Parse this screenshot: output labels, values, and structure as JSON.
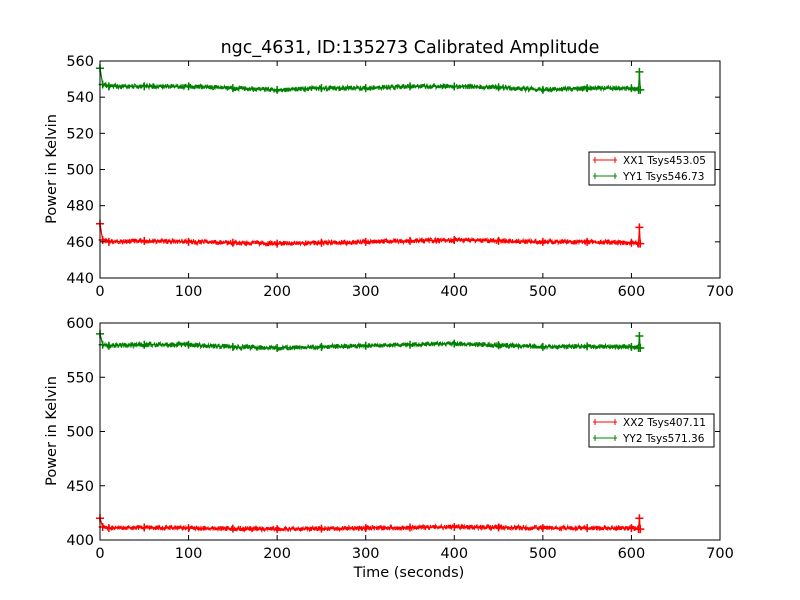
{
  "chart_data": [
    {
      "type": "line",
      "title": "ngc_4631, ID:135273 Calibrated Amplitude",
      "xlabel": "",
      "ylabel": "Power in Kelvin",
      "xlim": [
        0,
        700
      ],
      "ylim": [
        440,
        560
      ],
      "xticks": [
        0,
        100,
        200,
        300,
        400,
        500,
        600,
        700
      ],
      "yticks": [
        440,
        460,
        480,
        500,
        520,
        540,
        560
      ],
      "grid": false,
      "legend_position": "right",
      "series": [
        {
          "name": "XX1 Tsys453.05",
          "color": "#ff0000",
          "x": [
            0,
            3,
            10,
            50,
            100,
            150,
            200,
            250,
            300,
            350,
            400,
            450,
            500,
            550,
            600,
            608,
            609,
            610
          ],
          "y": [
            470,
            461,
            460,
            460.5,
            460,
            459.5,
            459,
            459.5,
            460,
            460.5,
            461,
            460.5,
            460,
            460,
            459.5,
            459,
            468,
            459
          ]
        },
        {
          "name": "YY1 Tsys546.73",
          "color": "#008000",
          "x": [
            0,
            3,
            10,
            50,
            100,
            150,
            200,
            250,
            300,
            350,
            400,
            450,
            500,
            550,
            600,
            608,
            609,
            610
          ],
          "y": [
            556,
            547,
            546,
            546,
            546,
            545,
            544,
            545,
            545,
            546,
            546,
            545.5,
            544,
            545,
            545,
            544,
            554,
            544
          ]
        }
      ]
    },
    {
      "type": "line",
      "title": "",
      "xlabel": "Time (seconds)",
      "ylabel": "Power in Kelvin",
      "xlim": [
        0,
        700
      ],
      "ylim": [
        400,
        600
      ],
      "xticks": [
        0,
        100,
        200,
        300,
        400,
        500,
        600,
        700
      ],
      "yticks": [
        400,
        450,
        500,
        550,
        600
      ],
      "grid": false,
      "legend_position": "right",
      "series": [
        {
          "name": "XX2 Tsys407.11",
          "color": "#ff0000",
          "x": [
            0,
            3,
            10,
            50,
            100,
            150,
            200,
            250,
            300,
            350,
            400,
            450,
            500,
            550,
            600,
            608,
            609,
            610
          ],
          "y": [
            420,
            412,
            411,
            411.5,
            411,
            410.5,
            410,
            410.5,
            411,
            411.5,
            412,
            411.5,
            411,
            411,
            411,
            410,
            420,
            410
          ]
        },
        {
          "name": "YY2 Tsys571.36",
          "color": "#008000",
          "x": [
            0,
            3,
            10,
            50,
            100,
            150,
            200,
            250,
            300,
            350,
            400,
            450,
            500,
            550,
            600,
            608,
            609,
            610
          ],
          "y": [
            590,
            580,
            579,
            580,
            580,
            578,
            577,
            578,
            579,
            580,
            581,
            579.5,
            578,
            578.5,
            578,
            577,
            588,
            577
          ]
        }
      ]
    }
  ]
}
